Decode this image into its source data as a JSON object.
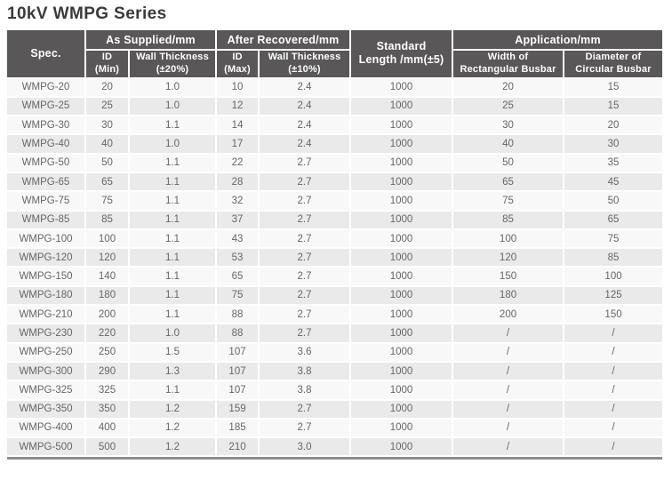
{
  "page": {
    "title": "10kV WMPG Series"
  },
  "table": {
    "header": {
      "spec": "Spec.",
      "as_supplied": {
        "group": "As Supplied/mm",
        "id_min_l1": "ID",
        "id_min_l2": "(Min)",
        "wt_l1": "Wall Thickness",
        "wt_l2": "(±20%)"
      },
      "after_recovered": {
        "group": "After Recovered/mm",
        "id_max_l1": "ID",
        "id_max_l2": "(Max)",
        "wt_l1": "Wall Thickness",
        "wt_l2": "(±10%)"
      },
      "standard_length_l1": "Standard",
      "standard_length_l2": "Length /mm(±5)",
      "application": {
        "group": "Application/mm",
        "width_l1": "Width of",
        "width_l2": "Rectangular Busbar",
        "diameter_l1": "Diameter of",
        "diameter_l2": "Circular Busbar"
      }
    },
    "rows": [
      [
        "WMPG-20",
        "20",
        "1.0",
        "10",
        "2.4",
        "1000",
        "20",
        "15"
      ],
      [
        "WMPG-25",
        "25",
        "1.0",
        "12",
        "2.4",
        "1000",
        "25",
        "15"
      ],
      [
        "WMPG-30",
        "30",
        "1.1",
        "14",
        "2.4",
        "1000",
        "30",
        "20"
      ],
      [
        "WMPG-40",
        "40",
        "1.0",
        "17",
        "2.4",
        "1000",
        "40",
        "30"
      ],
      [
        "WMPG-50",
        "50",
        "1.1",
        "22",
        "2.7",
        "1000",
        "50",
        "35"
      ],
      [
        "WMPG-65",
        "65",
        "1.1",
        "28",
        "2.7",
        "1000",
        "65",
        "45"
      ],
      [
        "WMPG-75",
        "75",
        "1.1",
        "32",
        "2.7",
        "1000",
        "75",
        "50"
      ],
      [
        "WMPG-85",
        "85",
        "1.1",
        "37",
        "2.7",
        "1000",
        "85",
        "65"
      ],
      [
        "WMPG-100",
        "100",
        "1.1",
        "43",
        "2.7",
        "1000",
        "100",
        "75"
      ],
      [
        "WMPG-120",
        "120",
        "1.1",
        "53",
        "2.7",
        "1000",
        "120",
        "85"
      ],
      [
        "WMPG-150",
        "140",
        "1.1",
        "65",
        "2.7",
        "1000",
        "150",
        "100"
      ],
      [
        "WMPG-180",
        "180",
        "1.1",
        "75",
        "2.7",
        "1000",
        "180",
        "125"
      ],
      [
        "WMPG-210",
        "200",
        "1.1",
        "88",
        "2.7",
        "1000",
        "200",
        "150"
      ],
      [
        "WMPG-230",
        "220",
        "1.0",
        "88",
        "2.7",
        "1000",
        "/",
        "/"
      ],
      [
        "WMPG-250",
        "250",
        "1.5",
        "107",
        "3.6",
        "1000",
        "/",
        "/"
      ],
      [
        "WMPG-300",
        "290",
        "1.3",
        "107",
        "3.8",
        "1000",
        "/",
        "/"
      ],
      [
        "WMPG-325",
        "325",
        "1.1",
        "107",
        "3.8",
        "1000",
        "/",
        "/"
      ],
      [
        "WMPG-350",
        "350",
        "1.2",
        "159",
        "2.7",
        "1000",
        "/",
        "/"
      ],
      [
        "WMPG-400",
        "400",
        "1.2",
        "185",
        "2.7",
        "1000",
        "/",
        "/"
      ],
      [
        "WMPG-500",
        "500",
        "1.2",
        "210",
        "3.0",
        "1000",
        "/",
        "/"
      ]
    ],
    "colors": {
      "header_bg": "#595757",
      "row_odd": "#f9f8f8",
      "row_even": "#ebeaea",
      "cell_text": "#666666",
      "bottom_border": "#8c8c8c",
      "title_text": "#3a3a3a"
    }
  }
}
